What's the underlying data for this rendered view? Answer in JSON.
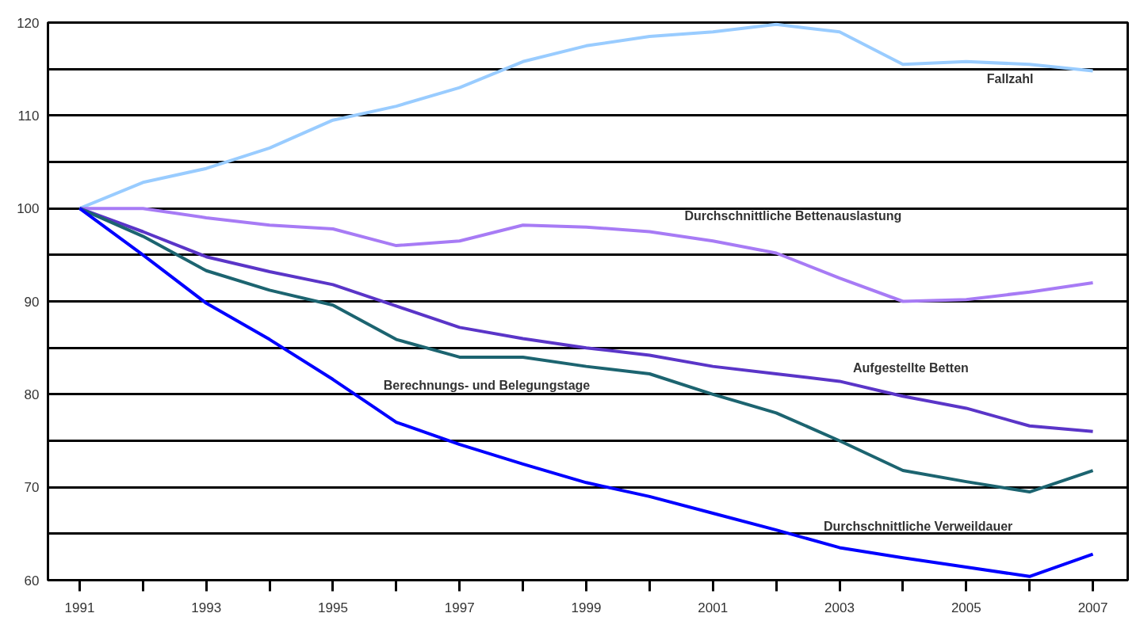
{
  "chart_data": {
    "type": "line",
    "x": [
      1991,
      1992,
      1993,
      1994,
      1995,
      1996,
      1997,
      1998,
      1999,
      2000,
      2001,
      2002,
      2003,
      2004,
      2005,
      2006,
      2007
    ],
    "series": [
      {
        "name": "Fallzahl",
        "color": "#99ccff",
        "values": [
          100,
          102.8,
          104.3,
          106.5,
          109.5,
          111,
          113,
          115.8,
          117.5,
          118.5,
          119,
          119.8,
          119,
          115.5,
          115.8,
          115.5,
          114.8
        ]
      },
      {
        "name": "Durchschnittliche Bettenauslastung",
        "color": "#a77bf5",
        "values": [
          100,
          100,
          99,
          98.2,
          97.8,
          96,
          96.5,
          98.2,
          98,
          97.5,
          96.5,
          95.2,
          92.5,
          90,
          90.2,
          91,
          92
        ]
      },
      {
        "name": "Aufgestellte Betten",
        "color": "#5a35c8",
        "values": [
          100,
          97.5,
          94.8,
          93.2,
          91.8,
          89.5,
          87.2,
          86,
          85,
          84.2,
          83,
          82.2,
          81.4,
          79.8,
          78.5,
          76.6,
          76
        ]
      },
      {
        "name": "Berechnungs- und Belegungstage",
        "color": "#1c6470",
        "values": [
          100,
          97,
          93.3,
          91.2,
          89.6,
          85.9,
          84,
          84,
          83,
          82.2,
          80,
          78,
          75,
          71.8,
          70.6,
          69.5,
          71.8
        ]
      },
      {
        "name": "Durchschnittliche Verweildauer",
        "color": "#0000ff",
        "values": [
          100,
          95,
          89.8,
          85.9,
          81.6,
          77,
          74.6,
          72.5,
          70.5,
          69,
          67.2,
          65.4,
          63.5,
          62.4,
          61.4,
          60.4,
          62.8
        ]
      }
    ],
    "xlim": [
      1990.5,
      2007.55
    ],
    "xticks": [
      1991,
      {
        "value": 1992,
        "label": null
      },
      1993,
      {
        "value": 1994,
        "label": null
      },
      1995,
      {
        "value": 1996,
        "label": null
      },
      1997,
      {
        "value": 1998,
        "label": null
      },
      1999,
      {
        "value": 2000,
        "label": null
      },
      2001,
      {
        "value": 2002,
        "label": null
      },
      2003,
      {
        "value": 2004,
        "label": null
      },
      2005,
      {
        "value": 2006,
        "label": null
      },
      2007
    ],
    "ylim": [
      60,
      120
    ],
    "yticks": [
      60,
      {
        "value": 65,
        "label": null
      },
      70,
      {
        "value": 75,
        "label": null
      },
      80,
      {
        "value": 85,
        "label": null
      },
      90,
      {
        "value": 95,
        "label": null
      },
      100,
      {
        "value": 105,
        "label": null
      },
      110,
      {
        "value": 115,
        "label": null
      },
      120
    ],
    "grid": "y",
    "line_style": "solid",
    "marker": "none",
    "legend": false
  }
}
